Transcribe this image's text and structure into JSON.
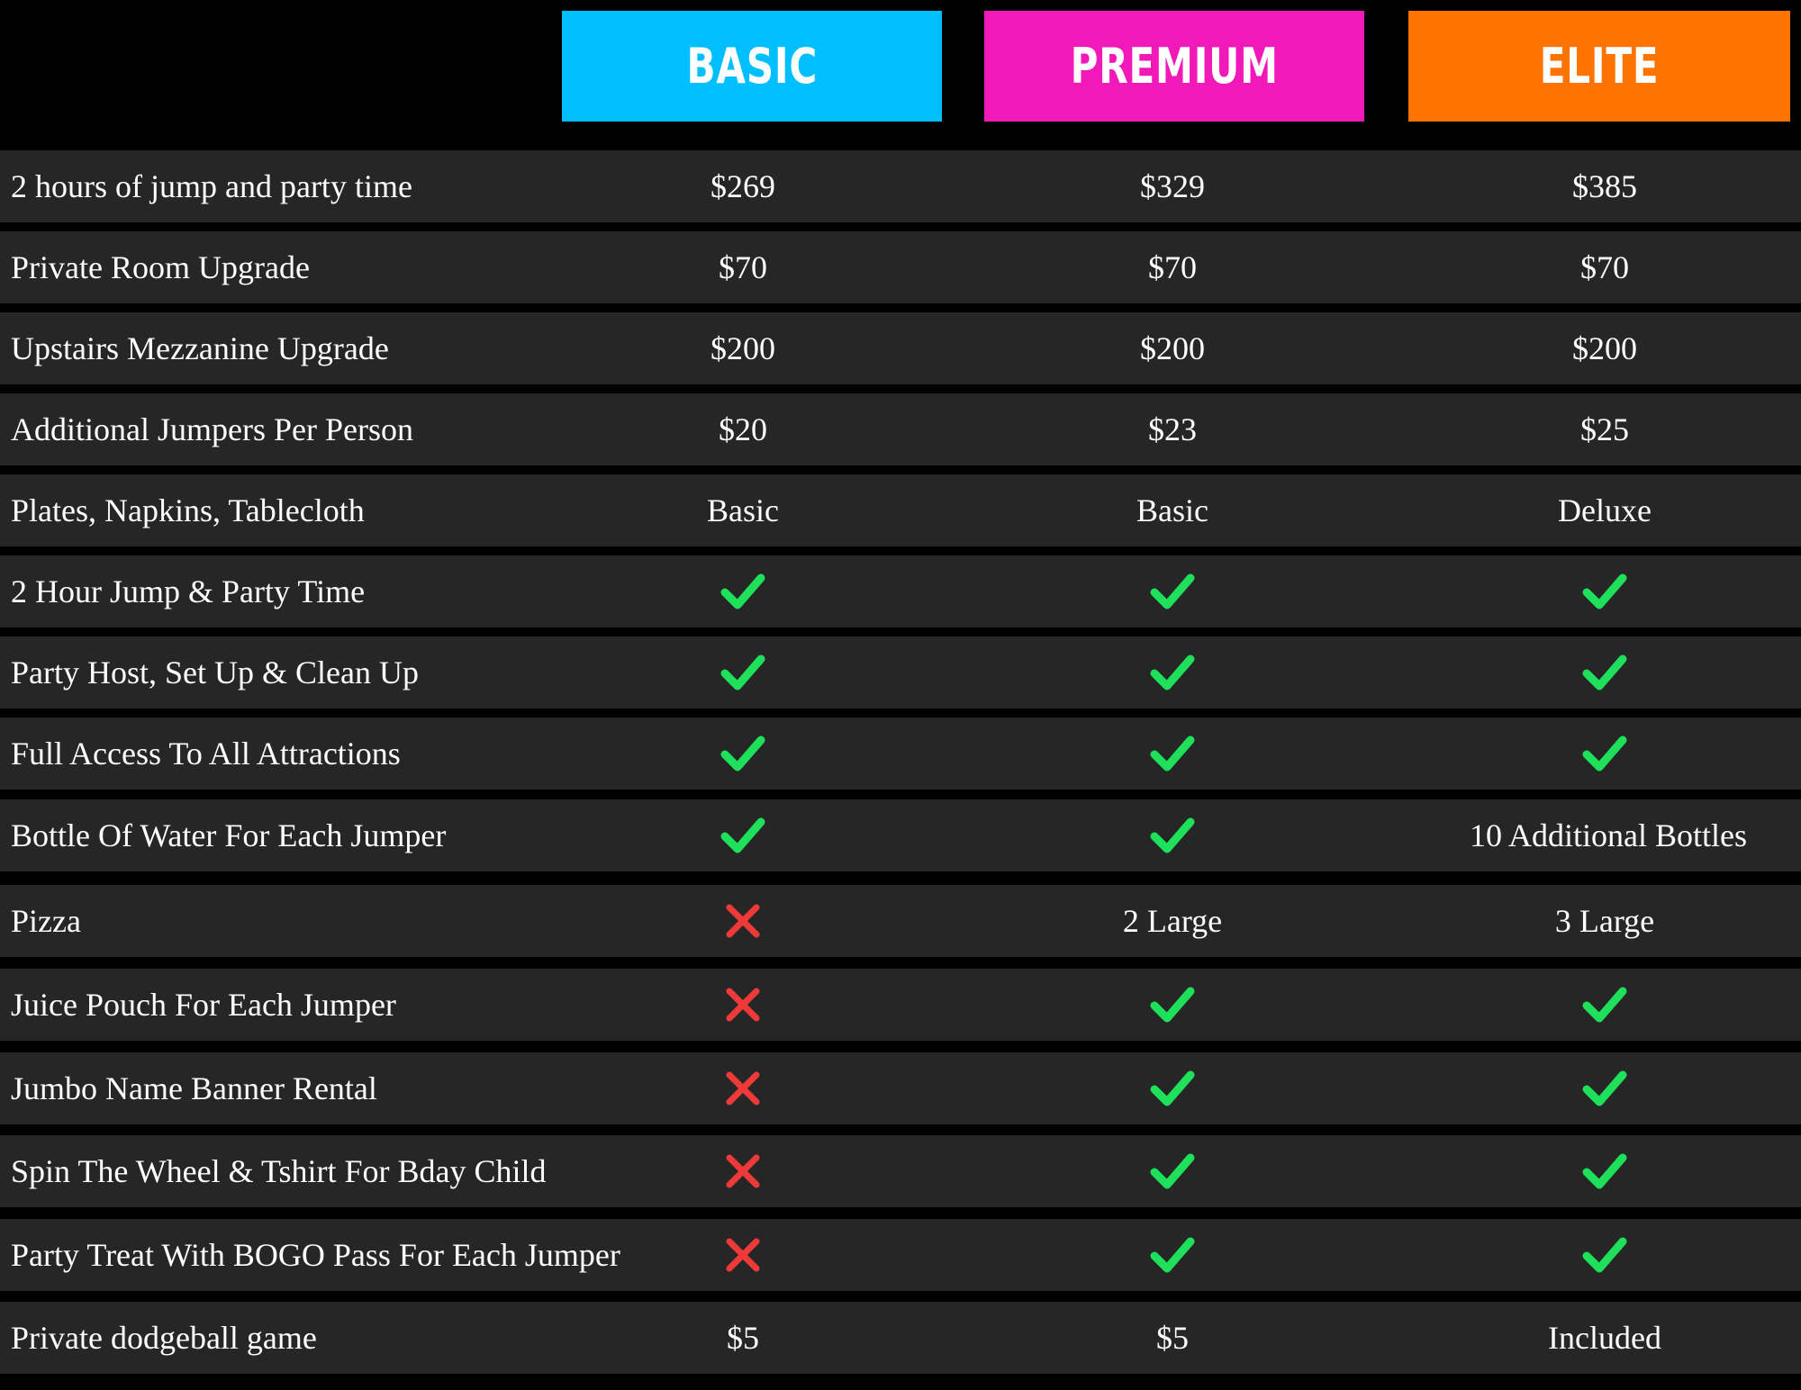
{
  "tiers": [
    {
      "name": "BASIC",
      "color": "#00bfff"
    },
    {
      "name": "PREMIUM",
      "color": "#f11ab9"
    },
    {
      "name": "ELITE",
      "color": "#ff7300"
    }
  ],
  "colors": {
    "check": "#1ee05a",
    "cross": "#f03a3a",
    "row_bg": "#262626"
  },
  "rows": [
    {
      "label": "2 hours of jump and party time",
      "basic": "$269",
      "premium": "$329",
      "elite": "$385"
    },
    {
      "label": "Private Room Upgrade",
      "basic": "$70",
      "premium": "$70",
      "elite": "$70"
    },
    {
      "label": "Upstairs Mezzanine Upgrade",
      "basic": "$200",
      "premium": "$200",
      "elite": "$200"
    },
    {
      "label": "Additional Jumpers Per Person",
      "basic": "$20",
      "premium": "$23",
      "elite": "$25"
    },
    {
      "label": "Plates, Napkins, Tablecloth",
      "basic": "Basic",
      "premium": "Basic",
      "elite": "Deluxe"
    },
    {
      "label": "2 Hour Jump & Party Time",
      "basic": "check-icon",
      "premium": "check-icon",
      "elite": "check-icon"
    },
    {
      "label": "Party Host, Set Up & Clean Up",
      "basic": "check-icon",
      "premium": "check-icon",
      "elite": "check-icon"
    },
    {
      "label": "Full Access To All Attractions",
      "basic": "check-icon",
      "premium": "check-icon",
      "elite": "check-icon"
    },
    {
      "label": "Bottle Of Water For Each Jumper",
      "basic": "check-icon",
      "premium": "check-icon",
      "elite": "10 Additional Bottles"
    },
    {
      "label": "Pizza",
      "basic": "cross-icon",
      "premium": "2 Large",
      "elite": "3 Large"
    },
    {
      "label": "Juice Pouch For Each Jumper",
      "basic": "cross-icon",
      "premium": "check-icon",
      "elite": "check-icon"
    },
    {
      "label": "Jumbo Name Banner Rental",
      "basic": "cross-icon",
      "premium": "check-icon",
      "elite": "check-icon"
    },
    {
      "label": "Spin The Wheel & Tshirt For Bday Child",
      "basic": "cross-icon",
      "premium": "check-icon",
      "elite": "check-icon"
    },
    {
      "label": "Party Treat With BOGO Pass For Each Jumper",
      "basic": "cross-icon",
      "premium": "check-icon",
      "elite": "check-icon"
    },
    {
      "label": "Private dodgeball game",
      "basic": "$5",
      "premium": "$5",
      "elite": "Included"
    }
  ]
}
